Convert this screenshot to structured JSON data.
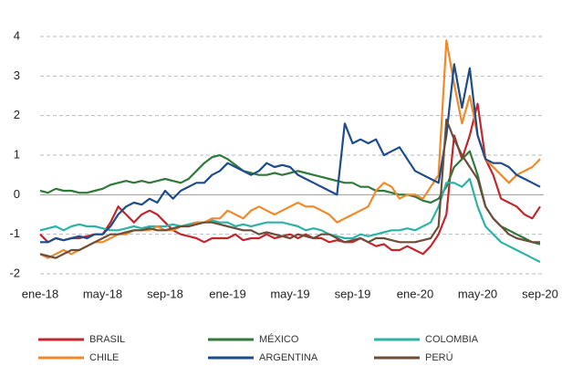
{
  "chart_data": {
    "type": "line",
    "categories": [
      "ene-18",
      null,
      null,
      null,
      null,
      null,
      null,
      null,
      "may-18",
      null,
      null,
      null,
      null,
      null,
      null,
      null,
      "sep-18",
      null,
      null,
      null,
      null,
      null,
      null,
      null,
      "ene-19",
      null,
      null,
      null,
      null,
      null,
      null,
      null,
      "may-19",
      null,
      null,
      null,
      null,
      null,
      null,
      null,
      "sep-19",
      null,
      null,
      null,
      null,
      null,
      null,
      null,
      "ene-20",
      null,
      null,
      null,
      null,
      null,
      null,
      null,
      "may-20",
      null,
      null,
      null,
      null,
      null,
      null,
      null,
      "sep-20"
    ],
    "ylim": [
      -2,
      4
    ],
    "yticks": [
      -2,
      -1,
      0,
      1,
      2,
      3,
      4
    ],
    "grid": true,
    "series": [
      {
        "name": "BRASIL",
        "color": "#c1272d",
        "values": [
          -1.0,
          -1.2,
          -1.1,
          -1.15,
          -1.1,
          -1.1,
          -1.05,
          -1.0,
          -1.0,
          -0.7,
          -0.3,
          -0.5,
          -0.7,
          -0.5,
          -0.4,
          -0.5,
          -0.7,
          -0.9,
          -1.0,
          -1.05,
          -1.1,
          -1.2,
          -1.1,
          -1.1,
          -1.1,
          -1.0,
          -1.15,
          -1.1,
          -1.1,
          -1.0,
          -1.1,
          -1.05,
          -1.0,
          -1.1,
          -1.0,
          -1.1,
          -1.1,
          -1.2,
          -1.15,
          -1.2,
          -1.2,
          -1.1,
          -1.2,
          -1.3,
          -1.25,
          -1.4,
          -1.4,
          -1.3,
          -1.4,
          -1.5,
          -1.3,
          -1.0,
          -0.5,
          1.5,
          0.9,
          1.5,
          2.3,
          0.9,
          0.5,
          -0.1,
          -0.2,
          -0.3,
          -0.5,
          -0.6,
          -0.3
        ]
      },
      {
        "name": "MÉXICO",
        "color": "#2f7a3a",
        "values": [
          0.1,
          0.05,
          0.15,
          0.1,
          0.1,
          0.05,
          0.05,
          0.1,
          0.15,
          0.25,
          0.3,
          0.35,
          0.3,
          0.35,
          0.3,
          0.35,
          0.4,
          0.35,
          0.3,
          0.4,
          0.6,
          0.8,
          0.95,
          1.0,
          0.9,
          0.75,
          0.6,
          0.55,
          0.5,
          0.5,
          0.55,
          0.5,
          0.55,
          0.6,
          0.55,
          0.5,
          0.45,
          0.4,
          0.35,
          0.3,
          0.3,
          0.2,
          0.2,
          0.1,
          0.1,
          0.05,
          0.0,
          0.0,
          -0.05,
          -0.15,
          -0.2,
          -0.1,
          0.2,
          0.7,
          0.9,
          1.1,
          0.5,
          -0.3,
          -0.6,
          -0.8,
          -0.9,
          -1.0,
          -1.1,
          -1.2,
          -1.25
        ]
      },
      {
        "name": "COLOMBIA",
        "color": "#2bb3a6",
        "values": [
          -0.9,
          -0.85,
          -0.8,
          -0.9,
          -0.8,
          -0.75,
          -0.8,
          -0.8,
          -0.85,
          -0.9,
          -0.9,
          -0.85,
          -0.8,
          -0.85,
          -0.8,
          -0.8,
          -0.8,
          -0.75,
          -0.8,
          -0.75,
          -0.7,
          -0.7,
          -0.65,
          -0.7,
          -0.7,
          -0.8,
          -0.75,
          -0.8,
          -0.75,
          -0.7,
          -0.7,
          -0.7,
          -0.75,
          -0.8,
          -0.9,
          -0.85,
          -0.9,
          -1.0,
          -1.05,
          -1.1,
          -1.1,
          -1.0,
          -1.05,
          -1.0,
          -0.95,
          -0.9,
          -0.9,
          -0.85,
          -0.9,
          -0.8,
          -0.7,
          -0.3,
          0.3,
          0.3,
          0.2,
          0.4,
          -0.3,
          -0.8,
          -1.0,
          -1.2,
          -1.3,
          -1.4,
          -1.5,
          -1.6,
          -1.7
        ]
      },
      {
        "name": "CHILE",
        "color": "#f0892a",
        "values": [
          -1.5,
          -1.6,
          -1.5,
          -1.4,
          -1.5,
          -1.4,
          -1.3,
          -1.2,
          -1.2,
          -1.1,
          -1.0,
          -1.0,
          -0.9,
          -0.9,
          -0.9,
          -0.8,
          -0.9,
          -0.9,
          -0.8,
          -0.8,
          -0.7,
          -0.7,
          -0.6,
          -0.6,
          -0.4,
          -0.5,
          -0.6,
          -0.4,
          -0.3,
          -0.4,
          -0.5,
          -0.4,
          -0.3,
          -0.2,
          -0.3,
          -0.3,
          -0.4,
          -0.5,
          -0.7,
          -0.6,
          -0.5,
          -0.4,
          -0.3,
          0.1,
          0.3,
          0.2,
          -0.1,
          0.0,
          0.0,
          -0.1,
          0.2,
          0.5,
          3.9,
          2.8,
          1.8,
          2.5,
          1.5,
          0.9,
          0.7,
          0.5,
          0.3,
          0.5,
          0.6,
          0.7,
          0.9
        ]
      },
      {
        "name": "ARGENTINA",
        "color": "#1c4c8a",
        "values": [
          -1.2,
          -1.2,
          -1.1,
          -1.15,
          -1.1,
          -1.05,
          -1.1,
          -1.0,
          -1.0,
          -0.8,
          -0.5,
          -0.3,
          -0.2,
          -0.25,
          -0.1,
          -0.2,
          0.1,
          -0.1,
          0.1,
          0.2,
          0.3,
          0.3,
          0.5,
          0.6,
          0.8,
          0.7,
          0.6,
          0.5,
          0.6,
          0.8,
          0.7,
          0.75,
          0.7,
          0.5,
          0.4,
          0.3,
          0.2,
          0.1,
          0.0,
          1.8,
          1.3,
          1.4,
          1.3,
          1.4,
          1.0,
          1.1,
          1.2,
          0.9,
          0.6,
          0.5,
          0.4,
          0.3,
          1.5,
          3.3,
          2.2,
          3.2,
          1.5,
          0.9,
          0.8,
          0.8,
          0.7,
          0.5,
          0.4,
          0.3,
          0.2
        ]
      },
      {
        "name": "PERÚ",
        "color": "#6b4e3a",
        "values": [
          -1.5,
          -1.55,
          -1.6,
          -1.5,
          -1.4,
          -1.4,
          -1.3,
          -1.2,
          -1.1,
          -1.0,
          -1.0,
          -0.95,
          -0.9,
          -0.9,
          -0.85,
          -0.9,
          -0.9,
          -0.85,
          -0.8,
          -0.8,
          -0.75,
          -0.7,
          -0.7,
          -0.75,
          -0.8,
          -0.85,
          -0.9,
          -0.9,
          -1.0,
          -0.95,
          -1.0,
          -1.05,
          -1.1,
          -1.0,
          -1.05,
          -1.1,
          -1.0,
          -1.0,
          -1.1,
          -1.2,
          -1.15,
          -1.1,
          -1.2,
          -1.1,
          -1.1,
          -1.15,
          -1.2,
          -1.2,
          -1.2,
          -1.15,
          -1.1,
          -0.8,
          1.9,
          1.4,
          1.0,
          0.7,
          0.4,
          -0.3,
          -0.6,
          -0.8,
          -1.0,
          -1.1,
          -1.15,
          -1.2,
          -1.2
        ]
      }
    ]
  }
}
